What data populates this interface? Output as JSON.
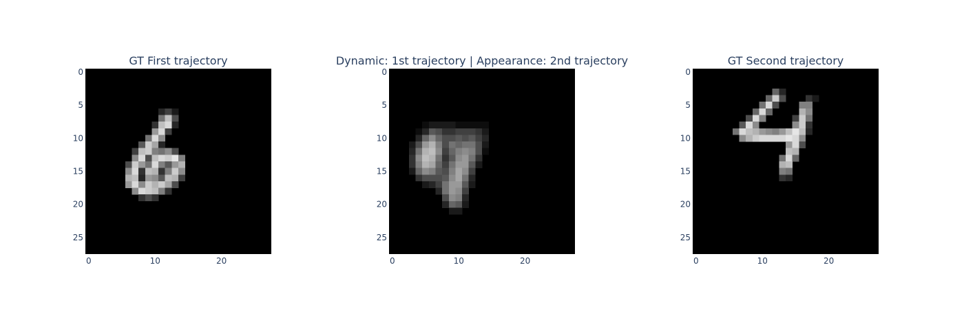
{
  "chart_data": [
    {
      "type": "heatmap",
      "title": "GT First trajectory",
      "colorscale": "gray",
      "zrange": [
        0,
        1
      ],
      "xlim": [
        -0.5,
        27.5
      ],
      "ylim": [
        27.5,
        -0.5
      ],
      "xticks": [
        0,
        10,
        20
      ],
      "yticks": [
        0,
        5,
        10,
        15,
        20,
        25
      ],
      "xtick_labels": [
        "0",
        "10",
        "20"
      ],
      "ytick_labels": [
        "0",
        "5",
        "10",
        "15",
        "20",
        "25"
      ],
      "grid": false,
      "rows": [
        {
          "r": 6,
          "c0": 11,
          "v": [
            0.15,
            0.25,
            0.1
          ]
        },
        {
          "r": 7,
          "c0": 11,
          "v": [
            0.45,
            0.75,
            0.3
          ]
        },
        {
          "r": 8,
          "c0": 10,
          "v": [
            0.2,
            0.75,
            0.85,
            0.15
          ]
        },
        {
          "r": 9,
          "c0": 10,
          "v": [
            0.6,
            0.85,
            0.25
          ]
        },
        {
          "r": 10,
          "c0": 9,
          "v": [
            0.45,
            0.85,
            0.55
          ]
        },
        {
          "r": 11,
          "c0": 8,
          "v": [
            0.35,
            0.8,
            0.65,
            0.15
          ]
        },
        {
          "r": 12,
          "c0": 7,
          "v": [
            0.25,
            0.75,
            0.8,
            0.5,
            0.45,
            0.55,
            0.3
          ]
        },
        {
          "r": 13,
          "c0": 7,
          "v": [
            0.55,
            0.85,
            0.3,
            0.75,
            0.85,
            0.8,
            0.9,
            0.5
          ]
        },
        {
          "r": 14,
          "c0": 6,
          "v": [
            0.3,
            0.8,
            0.6,
            0.45,
            0.85,
            0.5,
            0.35,
            0.6,
            0.7
          ]
        },
        {
          "r": 15,
          "c0": 6,
          "v": [
            0.55,
            0.85,
            0.2,
            0.75,
            0.7,
            0.2,
            0.5,
            0.8,
            0.55
          ]
        },
        {
          "r": 16,
          "c0": 6,
          "v": [
            0.7,
            0.75,
            0.15,
            0.6,
            0.55,
            0.35,
            0.75,
            0.7,
            0.25
          ]
        },
        {
          "r": 17,
          "c0": 6,
          "v": [
            0.6,
            0.85,
            0.55,
            0.8,
            0.7,
            0.8,
            0.65,
            0.3
          ]
        },
        {
          "r": 18,
          "c0": 7,
          "v": [
            0.55,
            0.85,
            0.8,
            0.75,
            0.5,
            0.2
          ]
        },
        {
          "r": 19,
          "c0": 8,
          "v": [
            0.2,
            0.3,
            0.2
          ]
        }
      ]
    },
    {
      "type": "heatmap",
      "title": "Dynamic: 1st trajectory | Appearance: 2nd trajectory",
      "colorscale": "gray",
      "zrange": [
        0,
        1
      ],
      "xlim": [
        -0.5,
        27.5
      ],
      "ylim": [
        27.5,
        -0.5
      ],
      "xticks": [
        0,
        10,
        20
      ],
      "yticks": [
        0,
        5,
        10,
        15,
        20,
        25
      ],
      "xtick_labels": [
        "0",
        "10",
        "20"
      ],
      "ytick_labels": [
        "0",
        "5",
        "10",
        "15",
        "20",
        "25"
      ],
      "grid": false,
      "rows": [
        {
          "r": 8,
          "c0": 5,
          "v": [
            0.05,
            0.1,
            0.1,
            0.1,
            0.1,
            0.05,
            0.05,
            0.05,
            0.05,
            0.05
          ]
        },
        {
          "r": 9,
          "c0": 4,
          "v": [
            0.05,
            0.15,
            0.35,
            0.3,
            0.2,
            0.2,
            0.25,
            0.25,
            0.25,
            0.2,
            0.1
          ]
        },
        {
          "r": 10,
          "c0": 4,
          "v": [
            0.15,
            0.4,
            0.55,
            0.4,
            0.3,
            0.3,
            0.35,
            0.3,
            0.35,
            0.25,
            0.15
          ]
        },
        {
          "r": 11,
          "c0": 3,
          "v": [
            0.1,
            0.3,
            0.6,
            0.7,
            0.5,
            0.3,
            0.45,
            0.4,
            0.45,
            0.45,
            0.3,
            0.1
          ]
        },
        {
          "r": 12,
          "c0": 3,
          "v": [
            0.15,
            0.45,
            0.7,
            0.75,
            0.55,
            0.25,
            0.4,
            0.5,
            0.55,
            0.5,
            0.3,
            0.05
          ]
        },
        {
          "r": 13,
          "c0": 3,
          "v": [
            0.2,
            0.55,
            0.75,
            0.7,
            0.45,
            0.2,
            0.35,
            0.55,
            0.6,
            0.45,
            0.2
          ]
        },
        {
          "r": 14,
          "c0": 3,
          "v": [
            0.2,
            0.5,
            0.7,
            0.65,
            0.4,
            0.25,
            0.45,
            0.6,
            0.6,
            0.35,
            0.1
          ]
        },
        {
          "r": 15,
          "c0": 3,
          "v": [
            0.1,
            0.4,
            0.55,
            0.5,
            0.35,
            0.3,
            0.5,
            0.65,
            0.55,
            0.25
          ]
        },
        {
          "r": 16,
          "c0": 4,
          "v": [
            0.2,
            0.3,
            0.3,
            0.3,
            0.35,
            0.55,
            0.65,
            0.45,
            0.15
          ]
        },
        {
          "r": 17,
          "c0": 5,
          "v": [
            0.1,
            0.15,
            0.25,
            0.45,
            0.6,
            0.6,
            0.35,
            0.1
          ]
        },
        {
          "r": 18,
          "c0": 7,
          "v": [
            0.15,
            0.45,
            0.6,
            0.55,
            0.25
          ]
        },
        {
          "r": 19,
          "c0": 8,
          "v": [
            0.3,
            0.55,
            0.5,
            0.15
          ]
        },
        {
          "r": 20,
          "c0": 8,
          "v": [
            0.15,
            0.4,
            0.35,
            0.1
          ]
        },
        {
          "r": 21,
          "c0": 9,
          "v": [
            0.1,
            0.1
          ]
        }
      ]
    },
    {
      "type": "heatmap",
      "title": "GT Second trajectory",
      "colorscale": "gray",
      "zrange": [
        0,
        1
      ],
      "xlim": [
        -0.5,
        27.5
      ],
      "ylim": [
        27.5,
        -0.5
      ],
      "xticks": [
        0,
        10,
        20
      ],
      "yticks": [
        0,
        5,
        10,
        15,
        20,
        25
      ],
      "xtick_labels": [
        "0",
        "10",
        "20"
      ],
      "ytick_labels": [
        "0",
        "5",
        "10",
        "15",
        "20",
        "25"
      ],
      "grid": false,
      "rows": [
        {
          "r": 3,
          "c0": 12,
          "v": [
            0.4,
            0.15
          ]
        },
        {
          "r": 4,
          "c0": 11,
          "v": [
            0.4,
            0.8,
            0.3,
            0,
            0,
            0,
            0.2,
            0.1
          ]
        },
        {
          "r": 5,
          "c0": 10,
          "v": [
            0.45,
            0.85,
            0.3,
            0,
            0,
            0,
            0.5,
            0.5
          ]
        },
        {
          "r": 6,
          "c0": 9,
          "v": [
            0.4,
            0.85,
            0.4,
            0,
            0,
            0,
            0,
            0.7,
            0.55
          ]
        },
        {
          "r": 7,
          "c0": 8,
          "v": [
            0.3,
            0.85,
            0.5,
            0,
            0,
            0,
            0,
            0.25,
            0.8,
            0.45
          ]
        },
        {
          "r": 8,
          "c0": 7,
          "v": [
            0.35,
            0.85,
            0.55,
            0,
            0,
            0,
            0,
            0,
            0.55,
            0.8,
            0.2
          ]
        },
        {
          "r": 9,
          "c0": 6,
          "v": [
            0.45,
            0.85,
            0.75,
            0.7,
            0.6,
            0.55,
            0.5,
            0.6,
            0.75,
            0.9,
            0.75,
            0.15
          ]
        },
        {
          "r": 10,
          "c0": 7,
          "v": [
            0.55,
            0.7,
            0.8,
            0.85,
            0.85,
            0.85,
            0.85,
            0.9,
            0.85,
            0.55
          ]
        },
        {
          "r": 11,
          "c0": 14,
          "v": [
            0.6,
            0.85,
            0.3
          ]
        },
        {
          "r": 12,
          "c0": 14,
          "v": [
            0.75,
            0.7
          ]
        },
        {
          "r": 13,
          "c0": 13,
          "v": [
            0.45,
            0.85,
            0.4
          ]
        },
        {
          "r": 14,
          "c0": 13,
          "v": [
            0.7,
            0.75
          ]
        },
        {
          "r": 15,
          "c0": 13,
          "v": [
            0.5,
            0.45
          ]
        },
        {
          "r": 16,
          "c0": 13,
          "v": [
            0.2,
            0.15
          ]
        }
      ]
    }
  ]
}
